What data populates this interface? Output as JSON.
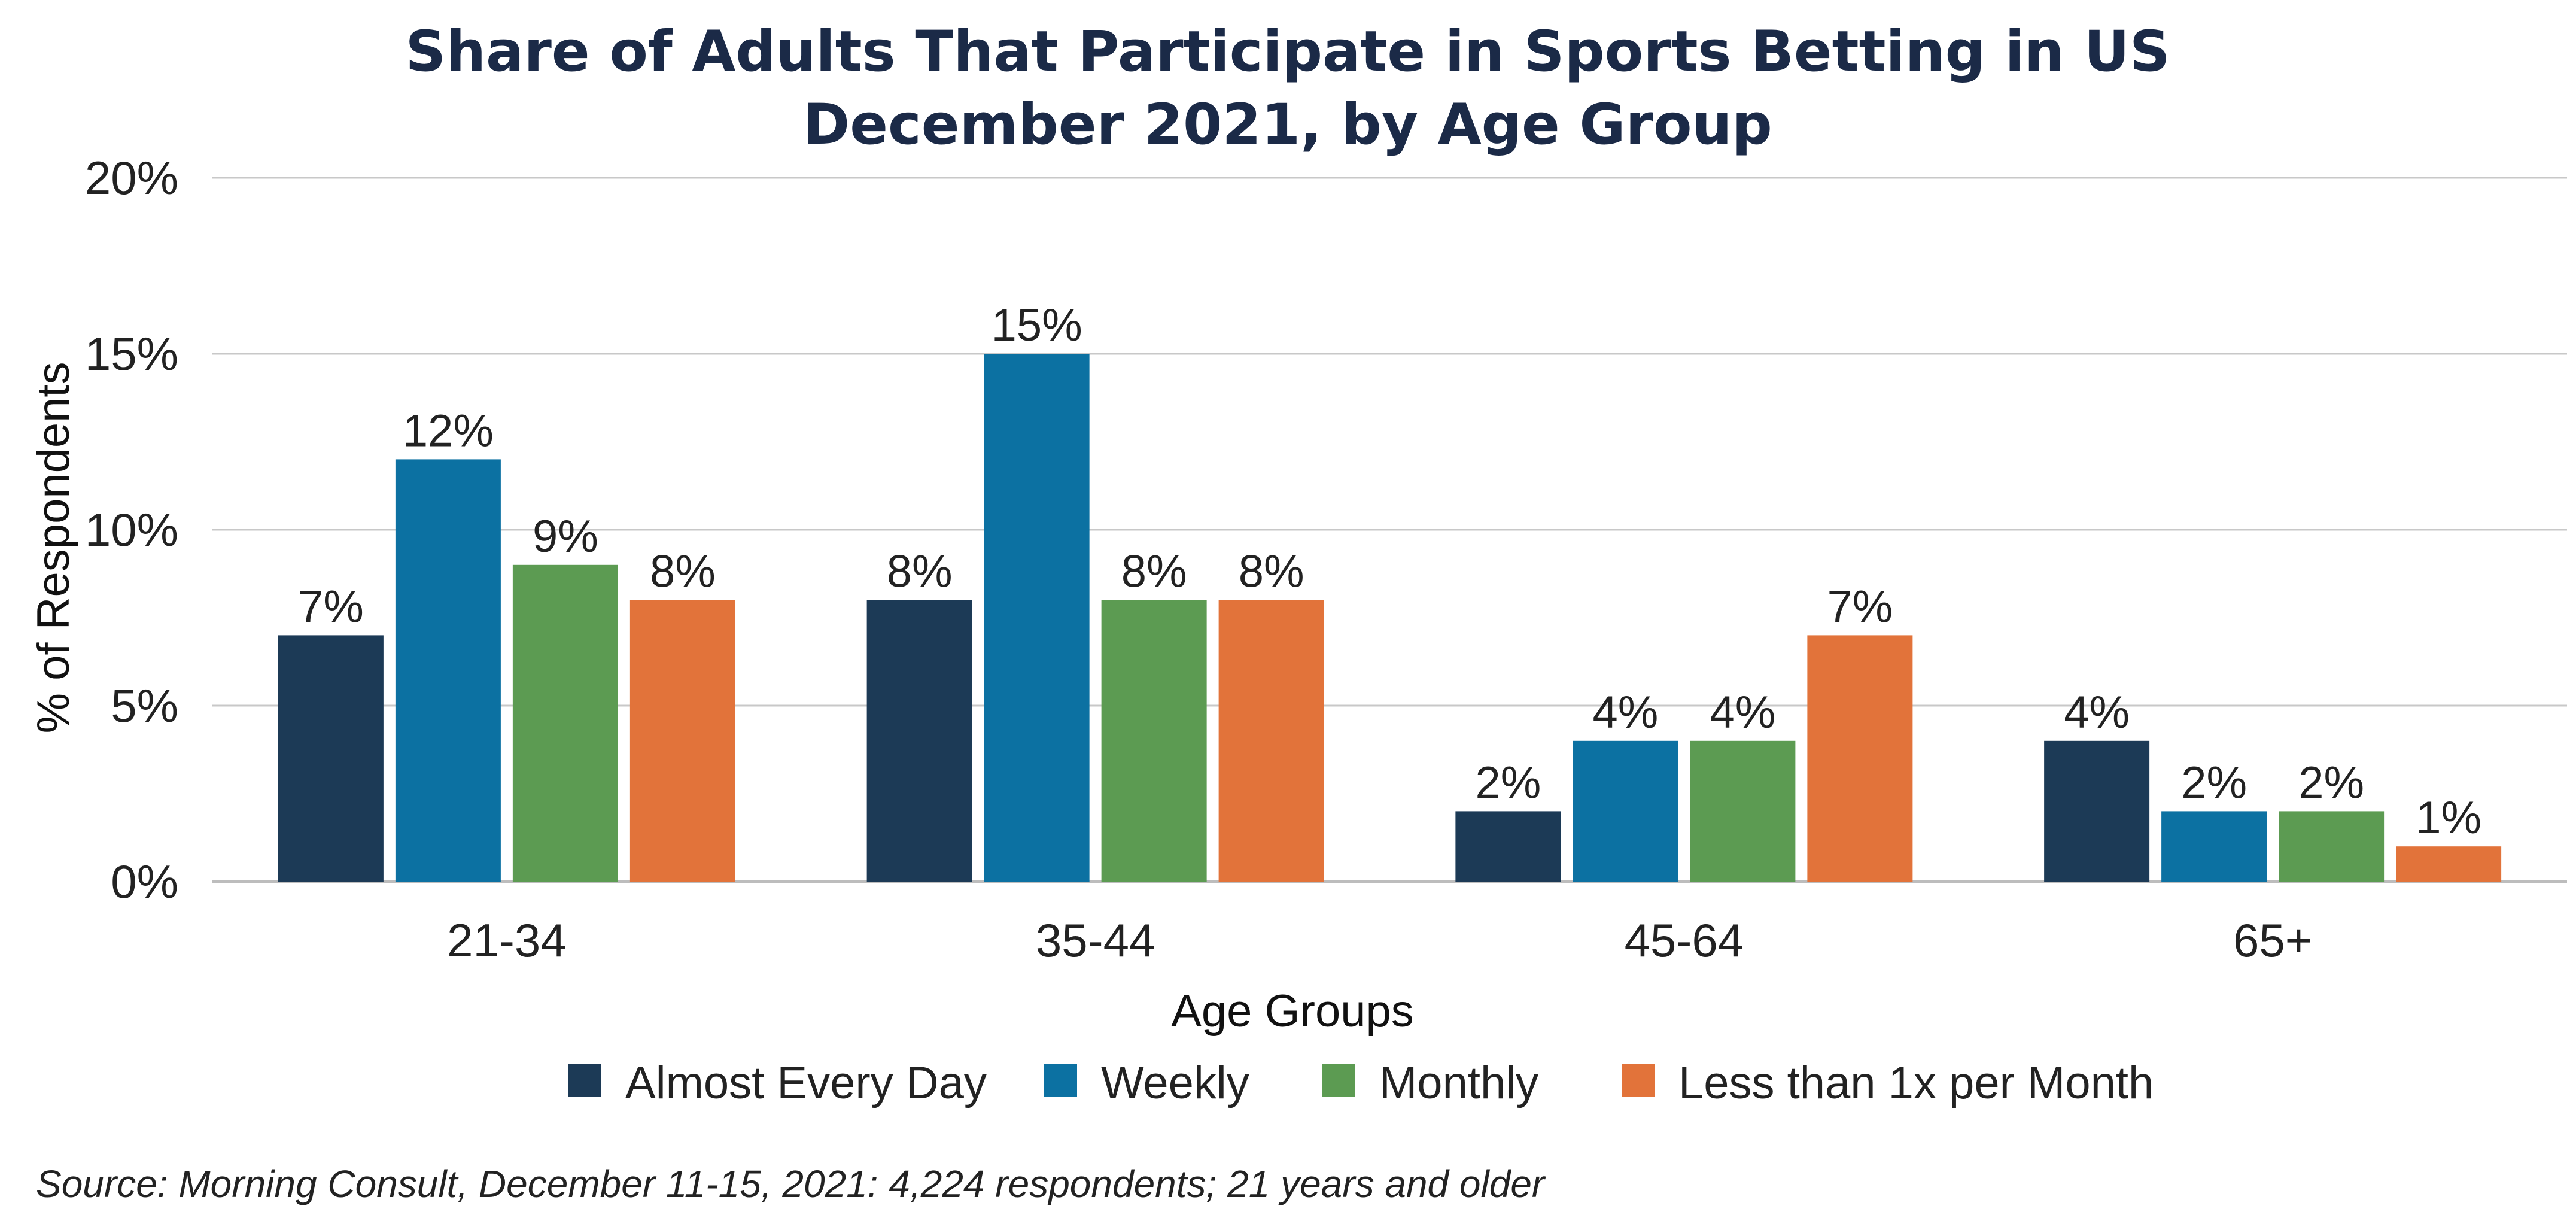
{
  "chart_data": {
    "type": "bar",
    "title_line1": "Share of Adults That Participate in Sports Betting in US",
    "title_line2": "December 2021, by Age Group",
    "xlabel": "Age Groups",
    "ylabel": "% of Respondents",
    "categories": [
      "21-34",
      "35-44",
      "45-64",
      "65+"
    ],
    "yticks": [
      0,
      5,
      10,
      15,
      20
    ],
    "ytick_labels": [
      "0%",
      "5%",
      "10%",
      "15%",
      "20%"
    ],
    "ylim": [
      0,
      20
    ],
    "grid": true,
    "legend_position": "bottom",
    "series": [
      {
        "name": "Almost Every Day",
        "color": "#1c3a56",
        "values": [
          7,
          8,
          2,
          4
        ],
        "labels": [
          "7%",
          "8%",
          "2%",
          "4%"
        ]
      },
      {
        "name": "Weekly",
        "color": "#0c71a2",
        "values": [
          12,
          15,
          4,
          2
        ],
        "labels": [
          "12%",
          "15%",
          "4%",
          "2%"
        ]
      },
      {
        "name": "Monthly",
        "color": "#5c9b52",
        "values": [
          9,
          8,
          4,
          2
        ],
        "labels": [
          "9%",
          "8%",
          "4%",
          "2%"
        ]
      },
      {
        "name": "Less than 1x per Month",
        "color": "#e2733a",
        "values": [
          8,
          8,
          7,
          1
        ],
        "labels": [
          "8%",
          "8%",
          "7%",
          "1%"
        ]
      }
    ],
    "source": "Source: Morning Consult, December 11-15, 2021: 4,224 respondents; 21 years and older"
  }
}
